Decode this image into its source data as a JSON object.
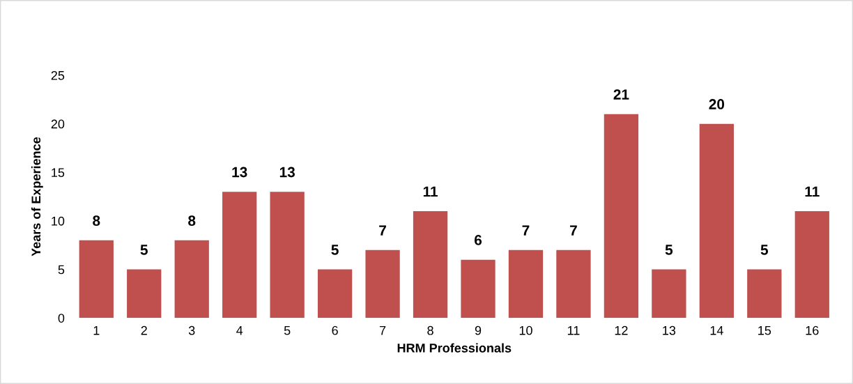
{
  "chart_data": {
    "type": "bar",
    "xlabel": "HRM Professionals",
    "ylabel": "Years of Experience",
    "categories": [
      "1",
      "2",
      "3",
      "4",
      "5",
      "6",
      "7",
      "8",
      "9",
      "10",
      "11",
      "12",
      "13",
      "14",
      "15",
      "16"
    ],
    "values": [
      8,
      5,
      8,
      13,
      13,
      5,
      7,
      11,
      6,
      7,
      7,
      21,
      5,
      20,
      5,
      11
    ],
    "color": "#c0504d",
    "ylim": [
      0,
      25
    ],
    "yticks": [
      0,
      5,
      10,
      15,
      20,
      25
    ],
    "data_labels": true,
    "grid": false,
    "legend": false
  }
}
